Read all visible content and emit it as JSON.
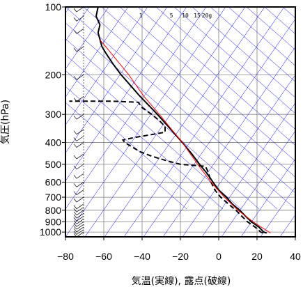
{
  "chart_data": {
    "type": "line",
    "xlabel": "気温(実線), 露点(破線)",
    "ylabel": "気圧(hPa)",
    "xlim": [
      -80,
      40
    ],
    "ylim": [
      1050,
      100
    ],
    "y_scale": "log",
    "x_ticks": [
      -80,
      -60,
      -40,
      -20,
      0,
      20,
      40
    ],
    "y_ticks": [
      100,
      200,
      300,
      400,
      500,
      600,
      700,
      800,
      900,
      1000
    ],
    "mixing_ratio_labels": [
      "1",
      "5",
      "10",
      "15",
      "20g"
    ],
    "colors": {
      "frame": "#000000",
      "grid": "#808080",
      "isotherm": "#0000ff",
      "dry_adiabat": "#0000ff",
      "parcel": "#ff0000",
      "temperature": "#000000",
      "dewpoint": "#000000",
      "wind": "#000000"
    },
    "series": [
      {
        "style": "solid",
        "points": [
          {
            "p": 1010,
            "t": 25
          },
          {
            "p": 1000,
            "t": 23.5
          },
          {
            "p": 950,
            "t": 21
          },
          {
            "p": 900,
            "t": 17
          },
          {
            "p": 850,
            "t": 14
          },
          {
            "p": 800,
            "t": 11
          },
          {
            "p": 750,
            "t": 7
          },
          {
            "p": 700,
            "t": 4
          },
          {
            "p": 650,
            "t": 0
          },
          {
            "p": 600,
            "t": -3
          },
          {
            "p": 550,
            "t": -6
          },
          {
            "p": 500,
            "t": -10
          },
          {
            "p": 450,
            "t": -14
          },
          {
            "p": 400,
            "t": -19
          },
          {
            "p": 350,
            "t": -25
          },
          {
            "p": 300,
            "t": -32
          },
          {
            "p": 250,
            "t": -41
          },
          {
            "p": 200,
            "t": -51
          },
          {
            "p": 180,
            "t": -55
          },
          {
            "p": 160,
            "t": -59
          },
          {
            "p": 150,
            "t": -61
          },
          {
            "p": 130,
            "t": -63
          },
          {
            "p": 120,
            "t": -62
          },
          {
            "p": 110,
            "t": -64
          },
          {
            "p": 100,
            "t": -63
          }
        ]
      },
      {
        "style": "dashed",
        "points": [
          {
            "p": 1010,
            "t": 23
          },
          {
            "p": 1000,
            "t": 22
          },
          {
            "p": 950,
            "t": 19
          },
          {
            "p": 900,
            "t": 15
          },
          {
            "p": 850,
            "t": 12
          },
          {
            "p": 800,
            "t": 9
          },
          {
            "p": 750,
            "t": 5
          },
          {
            "p": 700,
            "t": 1
          },
          {
            "p": 650,
            "t": -2
          },
          {
            "p": 600,
            "t": -4
          },
          {
            "p": 560,
            "t": -5
          },
          {
            "p": 530,
            "t": -6
          },
          {
            "p": 510,
            "t": -7
          },
          {
            "p": 500,
            "t": -20
          },
          {
            "p": 480,
            "t": -28
          },
          {
            "p": 460,
            "t": -35
          },
          {
            "p": 440,
            "t": -41
          },
          {
            "p": 420,
            "t": -45
          },
          {
            "p": 400,
            "t": -49
          },
          {
            "p": 390,
            "t": -50
          },
          {
            "p": 380,
            "t": -44
          },
          {
            "p": 370,
            "t": -36
          },
          {
            "p": 360,
            "t": -28
          },
          {
            "p": 340,
            "t": -28
          },
          {
            "p": 320,
            "t": -31
          },
          {
            "p": 300,
            "t": -35
          },
          {
            "p": 280,
            "t": -40
          },
          {
            "p": 265,
            "t": -42
          },
          {
            "p": 262,
            "t": -56
          },
          {
            "p": 262,
            "t": -78
          }
        ]
      },
      {
        "style": "parcel",
        "points": [
          {
            "p": 1010,
            "t": 27
          },
          {
            "p": 900,
            "t": 18
          },
          {
            "p": 800,
            "t": 10
          },
          {
            "p": 700,
            "t": 3
          },
          {
            "p": 600,
            "t": -4
          },
          {
            "p": 500,
            "t": -11
          },
          {
            "p": 400,
            "t": -19
          },
          {
            "p": 300,
            "t": -31
          },
          {
            "p": 250,
            "t": -39
          },
          {
            "p": 200,
            "t": -47
          },
          {
            "p": 150,
            "t": -59
          },
          {
            "p": 140,
            "t": -62
          }
        ]
      }
    ]
  }
}
